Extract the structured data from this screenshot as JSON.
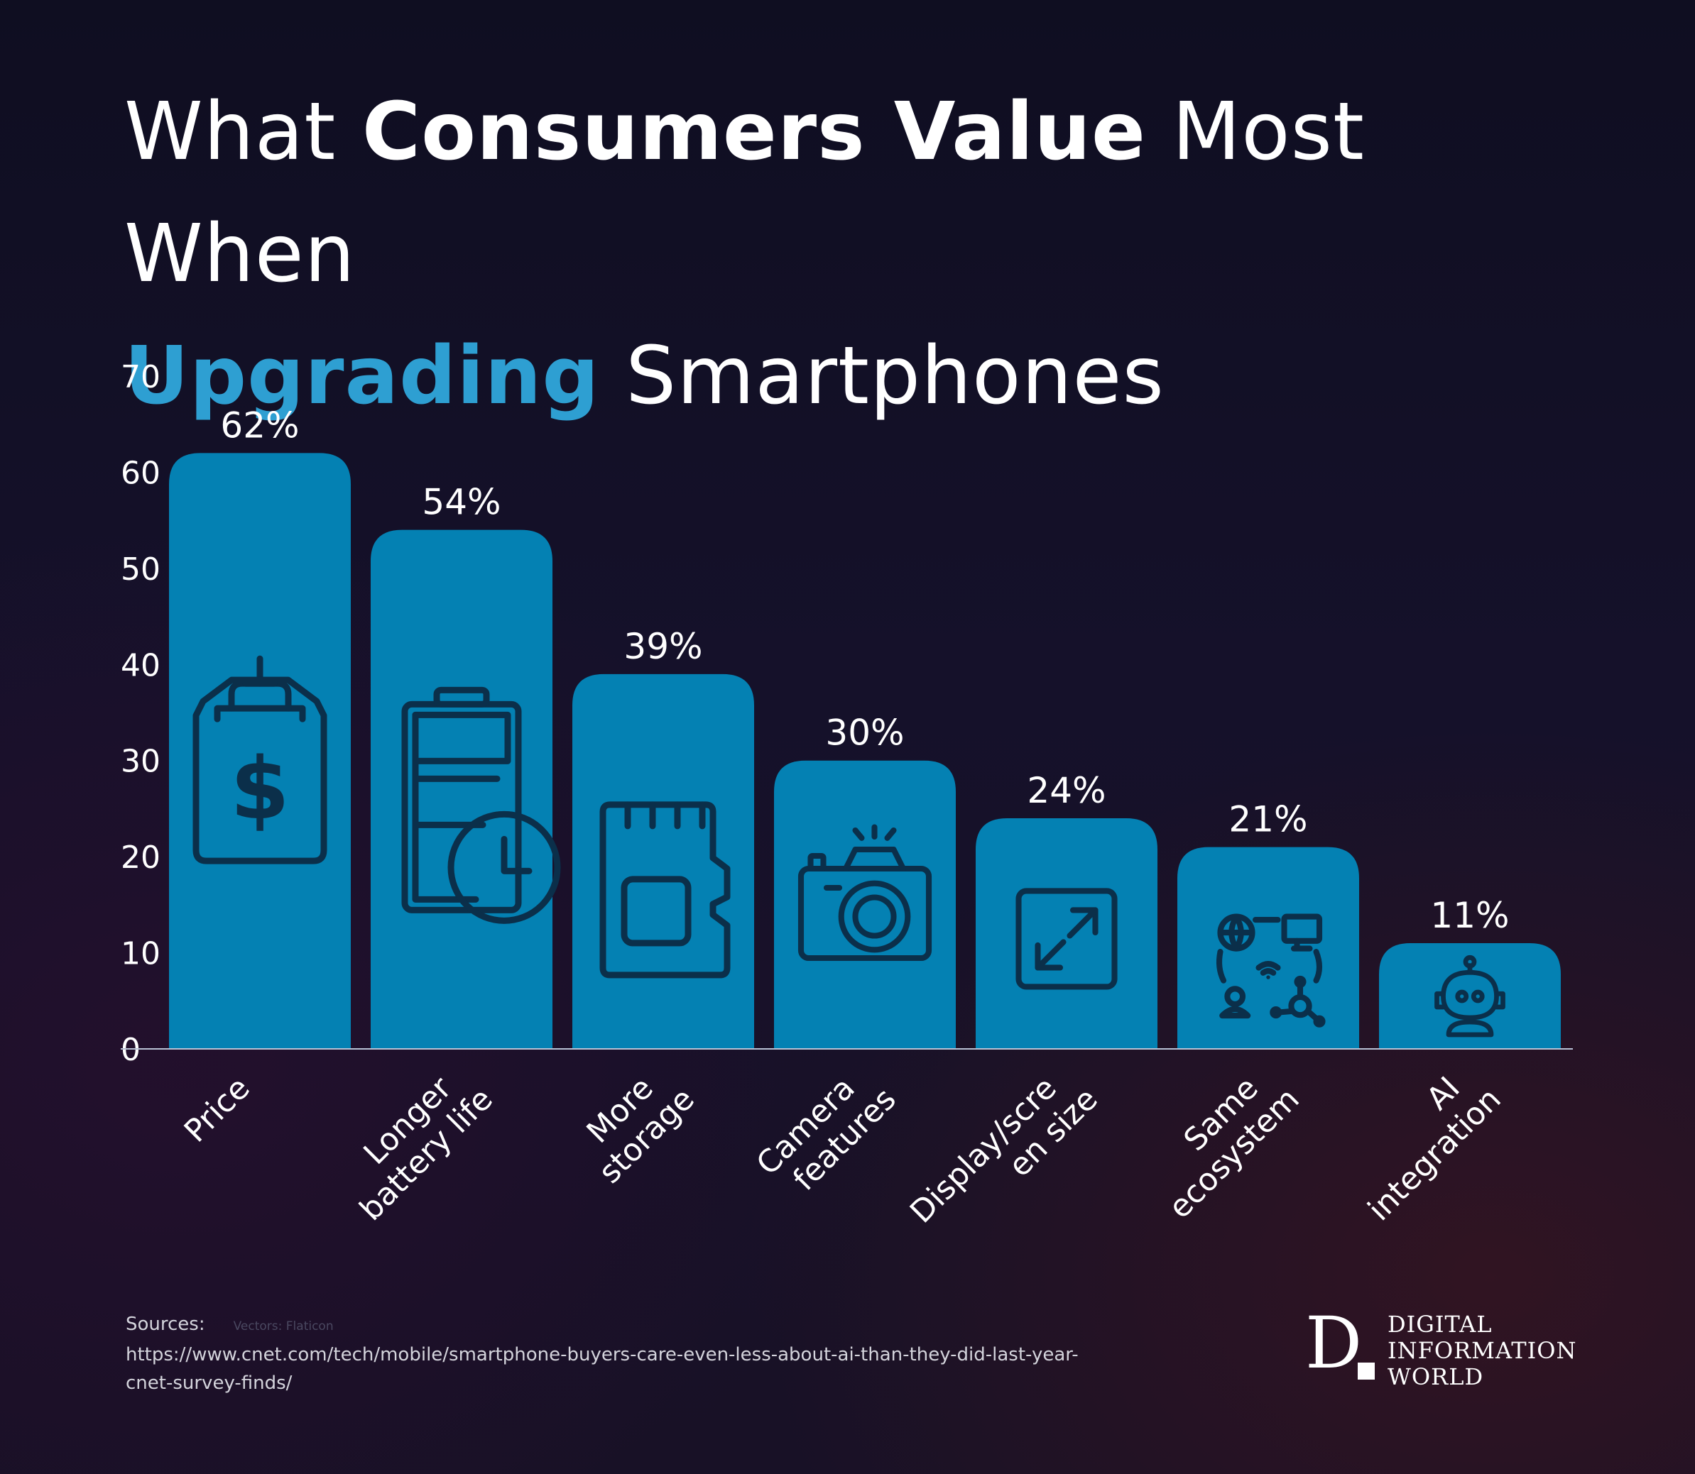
{
  "title": {
    "part1": "What ",
    "part2": "Consumers Value",
    "part3": " Most When",
    "part4": "Upgrading",
    "part5": " Smartphones"
  },
  "colors": {
    "background": "#14112a",
    "bar": "#0481b3",
    "icon": "#0b2f4a",
    "accent": "#2e9fd2",
    "text": "#ffffff"
  },
  "chart_data": {
    "type": "bar",
    "title": "What Consumers Value Most When Upgrading Smartphones",
    "xlabel": "",
    "ylabel": "",
    "ylim": [
      0,
      70
    ],
    "yticks": [
      "0",
      "10",
      "20",
      "30",
      "40",
      "50",
      "60",
      "70"
    ],
    "grid": false,
    "categories": [
      [
        "Price"
      ],
      [
        "Longer",
        "battery life"
      ],
      [
        "More",
        "storage"
      ],
      [
        "Camera",
        "features"
      ],
      [
        "Display/scre",
        "en size"
      ],
      [
        "Same",
        "ecosystem"
      ],
      [
        "AI",
        "integration"
      ]
    ],
    "values": [
      62,
      54,
      39,
      30,
      24,
      21,
      11
    ],
    "value_labels": [
      "62%",
      "54%",
      "39%",
      "30%",
      "24%",
      "21%",
      "11%"
    ],
    "icons": [
      "price-tag-icon",
      "battery-clock-icon",
      "sd-card-icon",
      "camera-icon",
      "expand-icon",
      "ecosystem-network-icon",
      "robot-icon"
    ]
  },
  "sources": {
    "label": "Sources:",
    "credit": "Vectors: Flaticon",
    "url_line1": "https://www.cnet.com/tech/mobile/smartphone-buyers-care-even-less-about-ai-than-they-did-last-year-",
    "url_line2": "cnet-survey-finds/"
  },
  "logo": {
    "mark": "D",
    "line1": "DIGITAL",
    "line2": "INFORMATION",
    "line3": "WORLD"
  }
}
